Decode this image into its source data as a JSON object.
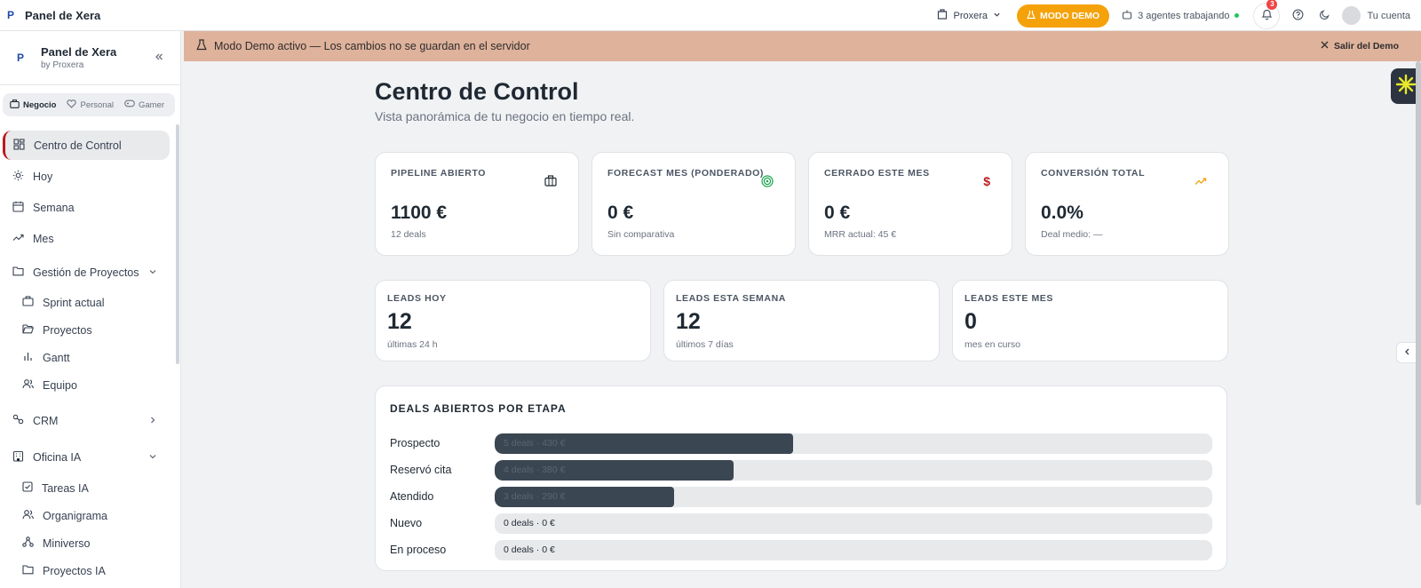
{
  "app": {
    "title": "Panel de Xera"
  },
  "topbar": {
    "org": "Proxera",
    "demo_button": "MODO DEMO",
    "agents_status": "3 agentes trabajando",
    "notifications_count": "3",
    "account": "Tu cuenta"
  },
  "sidebar": {
    "title": "Panel de Xera",
    "subtitle": "by Proxera",
    "modes": [
      "Negocio",
      "Personal",
      "Gamer"
    ],
    "items": {
      "control": "Centro de Control",
      "hoy": "Hoy",
      "semana": "Semana",
      "mes": "Mes",
      "proyectos_group": "Gestión de Proyectos",
      "sprint": "Sprint actual",
      "proyectos": "Proyectos",
      "gantt": "Gantt",
      "equipo": "Equipo",
      "crm": "CRM",
      "oficina": "Oficina IA",
      "tareas": "Tareas IA",
      "organigrama": "Organigrama",
      "miniverso": "Miniverso",
      "proyectos_ia": "Proyectos IA"
    }
  },
  "banner": {
    "text": "Modo Demo activo — Los cambios no se guardan en el servidor",
    "exit": "Salir del Demo"
  },
  "page": {
    "title": "Centro de Control",
    "subtitle": "Vista panorámica de tu negocio en tiempo real."
  },
  "kpis": [
    {
      "label": "PIPELINE ABIERTO",
      "value": "1100 €",
      "sub": "12 deals",
      "icon": "briefcase-icon",
      "color": "#1f2933"
    },
    {
      "label": "FORECAST MES (PONDERADO)",
      "value": "0 €",
      "sub": "Sin comparativa",
      "icon": "target-icon",
      "color": "#16a34a"
    },
    {
      "label": "CERRADO ESTE MES",
      "value": "0 €",
      "sub": "MRR actual: 45 €",
      "icon": "dollar-icon",
      "color": "#b91c1c"
    },
    {
      "label": "CONVERSIÓN TOTAL",
      "value": "0.0%",
      "sub": "Deal medio: —",
      "icon": "trending-up-icon",
      "color": "#f5a20a"
    }
  ],
  "leads": [
    {
      "label": "LEADS HOY",
      "value": "12",
      "sub": "últimas 24 h"
    },
    {
      "label": "LEADS ESTA SEMANA",
      "value": "12",
      "sub": "últimos 7 días"
    },
    {
      "label": "LEADS ESTE MES",
      "value": "0",
      "sub": "mes en curso"
    }
  ],
  "deals": {
    "title": "DEALS ABIERTOS POR ETAPA",
    "stages": [
      {
        "name": "Prospecto",
        "label": "5 deals · 430 €",
        "fraction": 0.416
      },
      {
        "name": "Reservó cita",
        "label": "4 deals · 380 €",
        "fraction": 0.333
      },
      {
        "name": "Atendido",
        "label": "3 deals · 290 €",
        "fraction": 0.25
      },
      {
        "name": "Nuevo",
        "label": "0 deals · 0 €",
        "fraction": 0
      },
      {
        "name": "En proceso",
        "label": "0 deals · 0 €",
        "fraction": 0
      }
    ]
  }
}
